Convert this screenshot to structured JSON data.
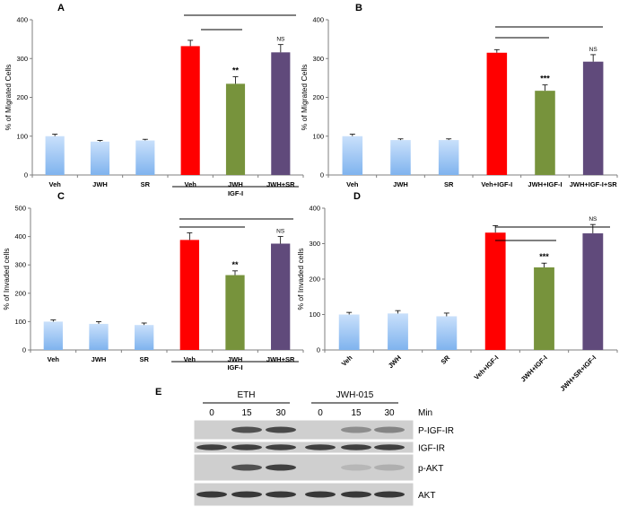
{
  "chart_data": [
    {
      "panel": "A",
      "type": "bar",
      "ylabel": "% of Migrated Cells",
      "ylim": [
        0,
        400
      ],
      "yticks": [
        0,
        100,
        200,
        300,
        400
      ],
      "categories": [
        "Veh",
        "JWH",
        "SR",
        "Veh",
        "JWH",
        "JWH+SR"
      ],
      "values": [
        100,
        86,
        89,
        332,
        235,
        316
      ],
      "errors": [
        5,
        3,
        3,
        15,
        18,
        20
      ],
      "bar_colors": [
        "light-blue",
        "light-blue",
        "light-blue",
        "red",
        "green",
        "purple"
      ],
      "group_label": "IGF-I",
      "significance": [
        "",
        "",
        "",
        "",
        "**",
        "NS"
      ]
    },
    {
      "panel": "B",
      "type": "bar",
      "ylabel": "% of Migrated Cells",
      "ylim": [
        0,
        400
      ],
      "yticks": [
        0,
        100,
        200,
        300,
        400
      ],
      "categories": [
        "Veh",
        "JWH",
        "SR",
        "Veh+IGF-I",
        "JWH+IGF-I",
        "JWH+IGF-I+SR"
      ],
      "values": [
        100,
        90,
        90,
        315,
        217,
        292
      ],
      "errors": [
        5,
        3,
        3,
        8,
        15,
        18
      ],
      "bar_colors": [
        "light-blue",
        "light-blue",
        "light-blue",
        "red",
        "green",
        "purple"
      ],
      "group_label": "",
      "significance": [
        "",
        "",
        "",
        "",
        "***",
        "NS"
      ]
    },
    {
      "panel": "C",
      "type": "bar",
      "ylabel": "% of Invaded cells",
      "ylim": [
        0,
        500
      ],
      "yticks": [
        0,
        100,
        200,
        300,
        400,
        500
      ],
      "categories": [
        "Veh",
        "JWH",
        "SR",
        "Veh",
        "JWH",
        "JWH+SR"
      ],
      "values": [
        100,
        92,
        88,
        388,
        264,
        375
      ],
      "errors": [
        6,
        8,
        7,
        25,
        15,
        25
      ],
      "bar_colors": [
        "light-blue",
        "light-blue",
        "light-blue",
        "red",
        "green",
        "purple"
      ],
      "group_label": "IGF-I",
      "significance": [
        "",
        "",
        "",
        "",
        "**",
        "NS"
      ]
    },
    {
      "panel": "D",
      "type": "bar",
      "ylabel": "% of Invaded cells",
      "ylim": [
        0,
        400
      ],
      "yticks": [
        0,
        100,
        200,
        300,
        400
      ],
      "categories": [
        "Veh",
        "JWH",
        "SR",
        "Veh+IGF-I",
        "JWH+IGF-I",
        "JWH+SR+IGF-I"
      ],
      "values": [
        100,
        103,
        95,
        331,
        233,
        329
      ],
      "errors": [
        6,
        8,
        9,
        20,
        12,
        25
      ],
      "bar_colors": [
        "light-blue",
        "light-blue",
        "light-blue",
        "red",
        "green",
        "purple"
      ],
      "group_label": "",
      "significance": [
        "",
        "",
        "",
        "",
        "***",
        "NS"
      ]
    }
  ],
  "blot": {
    "panel": "E",
    "groups": [
      "ETH",
      "JWH-015"
    ],
    "time_points": [
      "0",
      "15",
      "30",
      "0",
      "15",
      "30"
    ],
    "time_unit": "Min",
    "rows": [
      "P-IGF-IR",
      "IGF-IR",
      "p-AKT",
      "AKT"
    ],
    "intensities": [
      [
        0.05,
        0.7,
        0.75,
        0.05,
        0.35,
        0.4
      ],
      [
        0.8,
        0.8,
        0.8,
        0.8,
        0.8,
        0.8
      ],
      [
        0.05,
        0.7,
        0.8,
        0.05,
        0.1,
        0.15
      ],
      [
        0.85,
        0.85,
        0.85,
        0.85,
        0.85,
        0.85
      ]
    ]
  },
  "colors": {
    "light-blue": "#7fb3ee",
    "red": "#ff0000",
    "green": "#77933c",
    "purple": "#604a7b"
  }
}
